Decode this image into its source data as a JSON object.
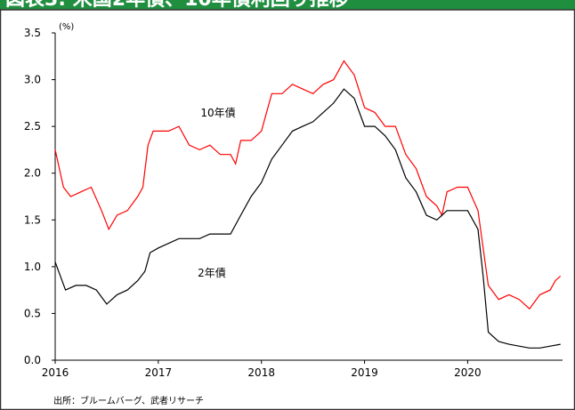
{
  "chart_data": {
    "type": "line",
    "title": "図表3: 米国2年債、10年債利回り推移",
    "y_unit": "(%)",
    "source": "出所：ブルームバーグ、武者リサーチ",
    "series": [
      {
        "name": "10年債",
        "color": "#ff0000",
        "x": [
          2016.0,
          2016.08,
          2016.15,
          2016.25,
          2016.35,
          2016.45,
          2016.52,
          2016.6,
          2016.7,
          2016.8,
          2016.85,
          2016.9,
          2016.95,
          2017.0,
          2017.1,
          2017.2,
          2017.3,
          2017.4,
          2017.5,
          2017.6,
          2017.7,
          2017.75,
          2017.8,
          2017.9,
          2018.0,
          2018.1,
          2018.2,
          2018.3,
          2018.4,
          2018.5,
          2018.6,
          2018.7,
          2018.8,
          2018.9,
          2019.0,
          2019.1,
          2019.2,
          2019.3,
          2019.4,
          2019.5,
          2019.6,
          2019.7,
          2019.75,
          2019.8,
          2019.9,
          2020.0,
          2020.1,
          2020.15,
          2020.2,
          2020.3,
          2020.4,
          2020.5,
          2020.6,
          2020.7,
          2020.8,
          2020.85,
          2020.9
        ],
        "values": [
          2.25,
          1.85,
          1.75,
          1.8,
          1.85,
          1.6,
          1.4,
          1.55,
          1.6,
          1.75,
          1.85,
          2.3,
          2.45,
          2.45,
          2.45,
          2.5,
          2.3,
          2.25,
          2.3,
          2.2,
          2.2,
          2.1,
          2.35,
          2.35,
          2.45,
          2.85,
          2.85,
          2.95,
          2.9,
          2.85,
          2.95,
          3.0,
          3.2,
          3.05,
          2.7,
          2.65,
          2.5,
          2.5,
          2.2,
          2.05,
          1.75,
          1.65,
          1.55,
          1.8,
          1.85,
          1.85,
          1.6,
          1.2,
          0.8,
          0.65,
          0.7,
          0.65,
          0.55,
          0.7,
          0.75,
          0.85,
          0.9
        ]
      },
      {
        "name": "2年債",
        "color": "#000000",
        "x": [
          2016.0,
          2016.1,
          2016.2,
          2016.3,
          2016.4,
          2016.5,
          2016.6,
          2016.7,
          2016.8,
          2016.87,
          2016.92,
          2017.0,
          2017.2,
          2017.4,
          2017.5,
          2017.6,
          2017.7,
          2017.8,
          2017.9,
          2018.0,
          2018.1,
          2018.2,
          2018.3,
          2018.4,
          2018.5,
          2018.6,
          2018.7,
          2018.8,
          2018.9,
          2019.0,
          2019.1,
          2019.2,
          2019.3,
          2019.4,
          2019.5,
          2019.6,
          2019.7,
          2019.8,
          2019.9,
          2020.0,
          2020.1,
          2020.15,
          2020.2,
          2020.3,
          2020.4,
          2020.5,
          2020.6,
          2020.7,
          2020.8,
          2020.9
        ],
        "values": [
          1.05,
          0.75,
          0.8,
          0.8,
          0.75,
          0.6,
          0.7,
          0.75,
          0.85,
          0.95,
          1.15,
          1.2,
          1.3,
          1.3,
          1.35,
          1.35,
          1.35,
          1.55,
          1.75,
          1.9,
          2.15,
          2.3,
          2.45,
          2.5,
          2.55,
          2.65,
          2.75,
          2.9,
          2.8,
          2.5,
          2.5,
          2.4,
          2.25,
          1.95,
          1.8,
          1.55,
          1.5,
          1.6,
          1.6,
          1.6,
          1.4,
          0.9,
          0.3,
          0.2,
          0.17,
          0.15,
          0.13,
          0.13,
          0.15,
          0.17
        ]
      }
    ],
    "xlim": [
      2016,
      2020.92
    ],
    "xticks": [
      2016,
      2017,
      2018,
      2019,
      2020
    ],
    "ylim": [
      0,
      3.5
    ],
    "yticks": [
      {
        "value": 0,
        "label": "0.0"
      },
      0.5,
      {
        "value": 1,
        "label": "1.0"
      },
      1.5,
      {
        "value": 2,
        "label": "2.0"
      },
      2.5,
      {
        "value": 3,
        "label": "3.0"
      },
      3.5
    ]
  }
}
